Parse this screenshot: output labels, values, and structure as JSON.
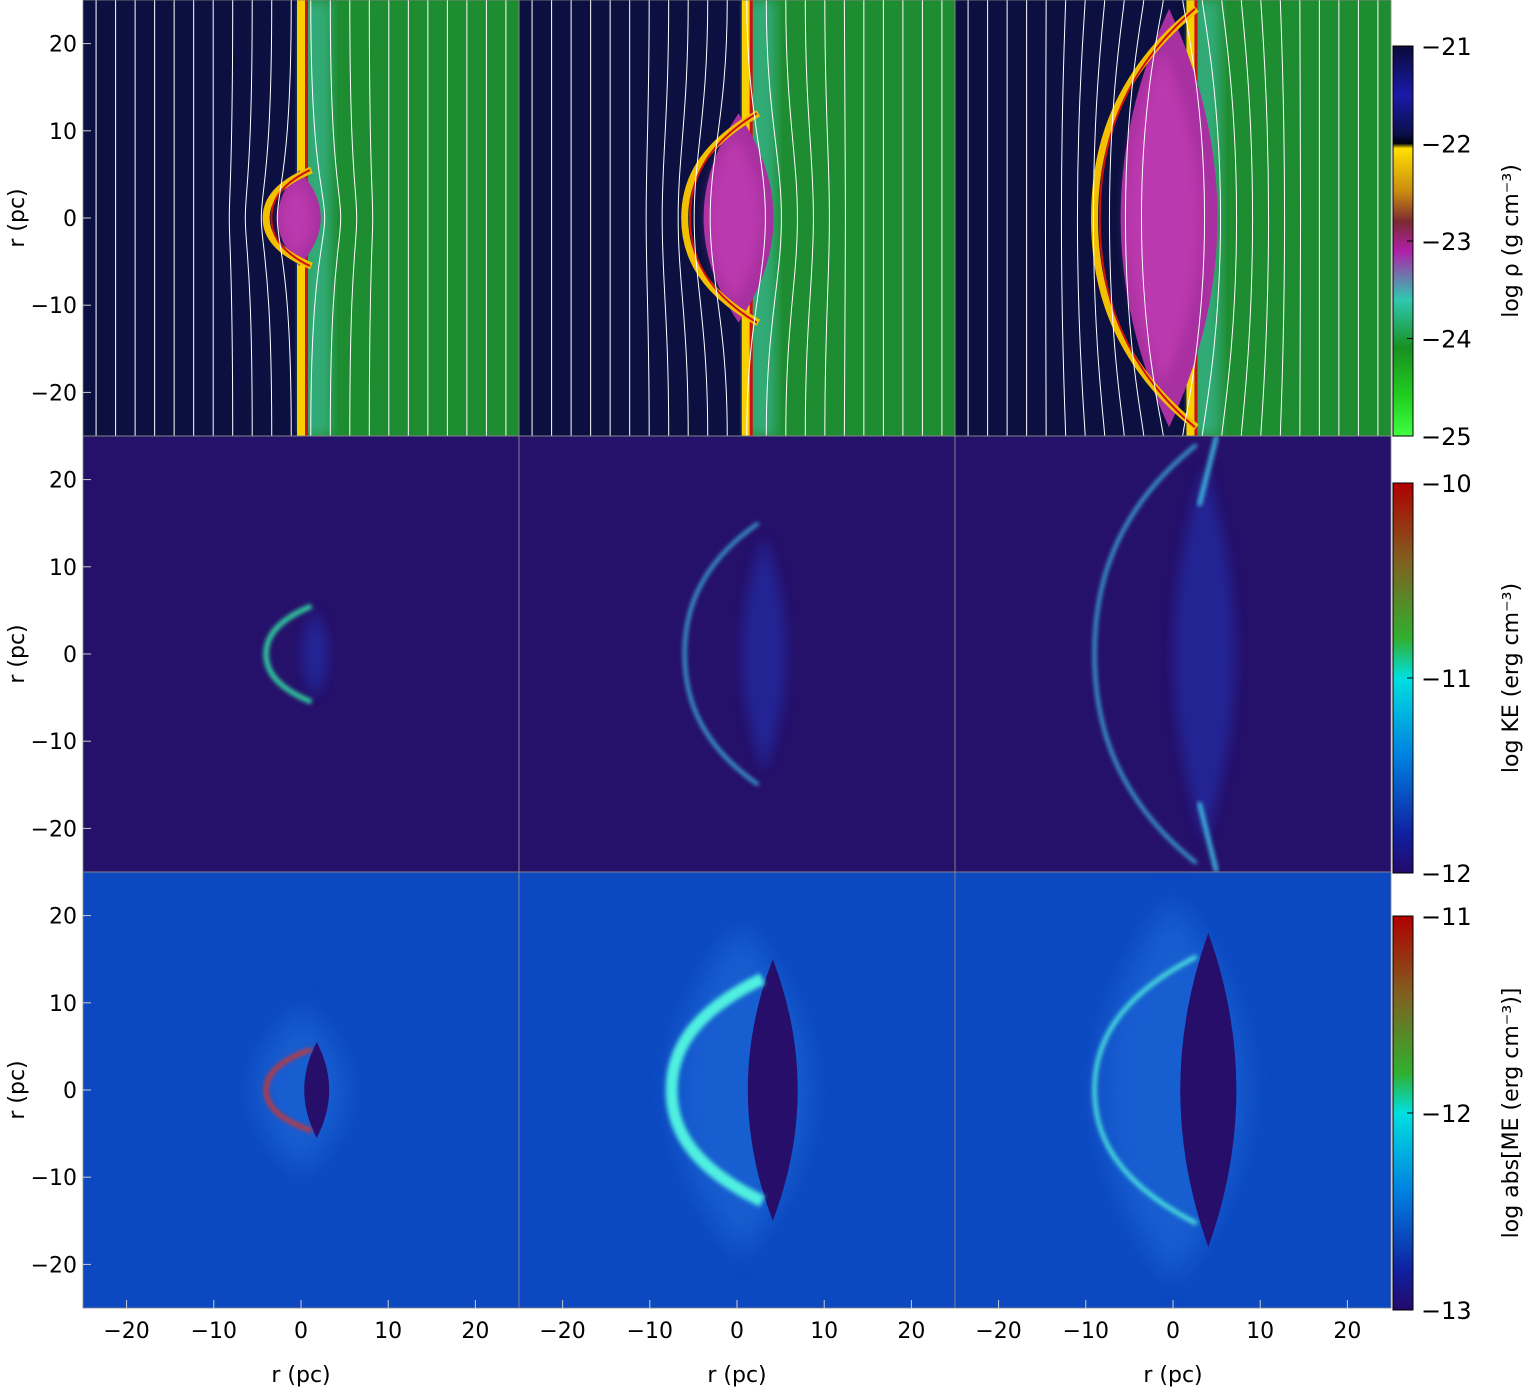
{
  "chart_data": {
    "type": "heatmap",
    "layout": "3 rows x 3 columns of panels, one colorbar per row on the right",
    "x_axis": {
      "label": "r (pc)",
      "range": [
        -25,
        25
      ],
      "ticks": [
        -20,
        -10,
        0,
        10,
        20
      ],
      "tick_labels": [
        "−20",
        "−10",
        "0",
        "10",
        "20"
      ]
    },
    "y_axis": {
      "label": "r (pc)",
      "range": [
        -25,
        25
      ],
      "ticks": [
        20,
        10,
        0,
        -10,
        -20
      ],
      "tick_labels": [
        "20",
        "10",
        "0",
        "−10",
        "−20"
      ]
    },
    "rows": [
      {
        "quantity": "density",
        "colorbar": {
          "label": "log ρ (g cm⁻³)",
          "range": [
            -25,
            -21
          ],
          "ticks": [
            -21,
            -22,
            -23,
            -24,
            -25
          ],
          "tick_labels": [
            "−21",
            "−22",
            "−23",
            "−24",
            "−25"
          ],
          "colors": [
            "#0a0a3a",
            "#1a1aa8",
            "#0b0f4a",
            "#000010",
            "#ffe000",
            "#c88a10",
            "#7a2a30",
            "#b020a8",
            "#30c8b0",
            "#189020",
            "#20d020",
            "#40ff40"
          ],
          "color_stops": [
            -21,
            -21.5,
            -21.9,
            -22,
            -22.05,
            -22.5,
            -22.8,
            -23.1,
            -23.6,
            -24.1,
            -24.6,
            -25
          ]
        },
        "panels": [
          {
            "shell_radius": 4,
            "shell_extent": 5.5,
            "field_lines": true
          },
          {
            "shell_radius": 6.5,
            "shell_extent": 12,
            "field_lines": true
          },
          {
            "shell_radius": 9,
            "shell_extent": 24,
            "field_lines": true
          }
        ],
        "background": "#0b1040",
        "ambient": "#1e8c30"
      },
      {
        "quantity": "kinetic energy",
        "colorbar": {
          "label": "log KE (erg cm⁻³)",
          "range": [
            -12,
            -10
          ],
          "ticks": [
            -10,
            -11,
            -12
          ],
          "tick_labels": [
            "−10",
            "−11",
            "−12"
          ],
          "colors": [
            "#b00000",
            "#806020",
            "#30b030",
            "#00e0e0",
            "#0080e0",
            "#1020a0",
            "#240a6a"
          ],
          "color_stops": [
            -10,
            -10.4,
            -10.8,
            -11,
            -11.4,
            -11.8,
            -12
          ]
        },
        "panels": [
          {
            "shell_radius": 4,
            "shell_extent": 5.5
          },
          {
            "shell_radius": 6.5,
            "shell_extent": 15
          },
          {
            "shell_radius": 9,
            "shell_extent": 24
          }
        ],
        "background": "#25106a"
      },
      {
        "quantity": "magnetic energy",
        "colorbar": {
          "label": "log abs[ME (erg cm⁻³)]",
          "range": [
            -13,
            -11
          ],
          "ticks": [
            -11,
            -12,
            -13
          ],
          "tick_labels": [
            "−11",
            "−12",
            "−13"
          ],
          "colors": [
            "#b00000",
            "#806020",
            "#30b030",
            "#00e0e0",
            "#0080e0",
            "#1020a0",
            "#240a6a"
          ],
          "color_stops": [
            -11,
            -11.4,
            -11.8,
            -12,
            -12.4,
            -12.8,
            -13
          ]
        },
        "panels": [
          {
            "shell_radius": 4,
            "shell_extent": 5.5
          },
          {
            "shell_radius": 8,
            "shell_extent": 15
          },
          {
            "shell_radius": 9,
            "shell_extent": 18
          }
        ],
        "background": "#0c48c0"
      }
    ]
  }
}
